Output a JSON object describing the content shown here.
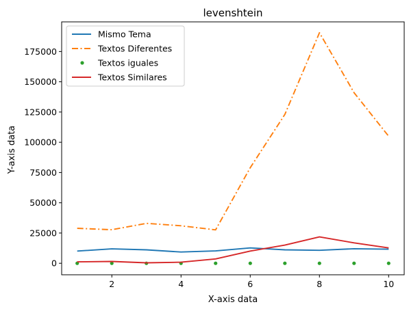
{
  "chart_data": {
    "type": "line",
    "title": "levenshtein",
    "xlabel": "X-axis data",
    "ylabel": "Y-axis data",
    "xlim": [
      0.55,
      10.45
    ],
    "ylim": [
      -9500,
      199500
    ],
    "xticks": [
      2,
      4,
      6,
      8,
      10
    ],
    "yticks": [
      0,
      25000,
      50000,
      75000,
      100000,
      125000,
      150000,
      175000
    ],
    "grid": false,
    "legend_position": "upper-left",
    "x": [
      1,
      2,
      3,
      4,
      5,
      6,
      7,
      8,
      9,
      10
    ],
    "series": [
      {
        "name": "Mismo Tema",
        "style": "solid",
        "color": "#1f77b4",
        "values": [
          10100,
          11900,
          11100,
          9300,
          10200,
          12700,
          11100,
          10700,
          12000,
          11600
        ]
      },
      {
        "name": "Textos Diferentes",
        "style": "dashdot",
        "color": "#ff7f0e",
        "values": [
          28900,
          27700,
          33000,
          31000,
          27600,
          79000,
          123000,
          190500,
          141000,
          105000
        ]
      },
      {
        "name": "Textos iguales",
        "style": "dots",
        "color": "#2ca02c",
        "values": [
          0,
          0,
          0,
          0,
          0,
          0,
          0,
          0,
          0,
          0
        ]
      },
      {
        "name": "Textos Similares",
        "style": "solid",
        "color": "#d62728",
        "values": [
          1200,
          1500,
          400,
          900,
          3600,
          10100,
          15000,
          21800,
          16900,
          12700
        ]
      }
    ]
  }
}
